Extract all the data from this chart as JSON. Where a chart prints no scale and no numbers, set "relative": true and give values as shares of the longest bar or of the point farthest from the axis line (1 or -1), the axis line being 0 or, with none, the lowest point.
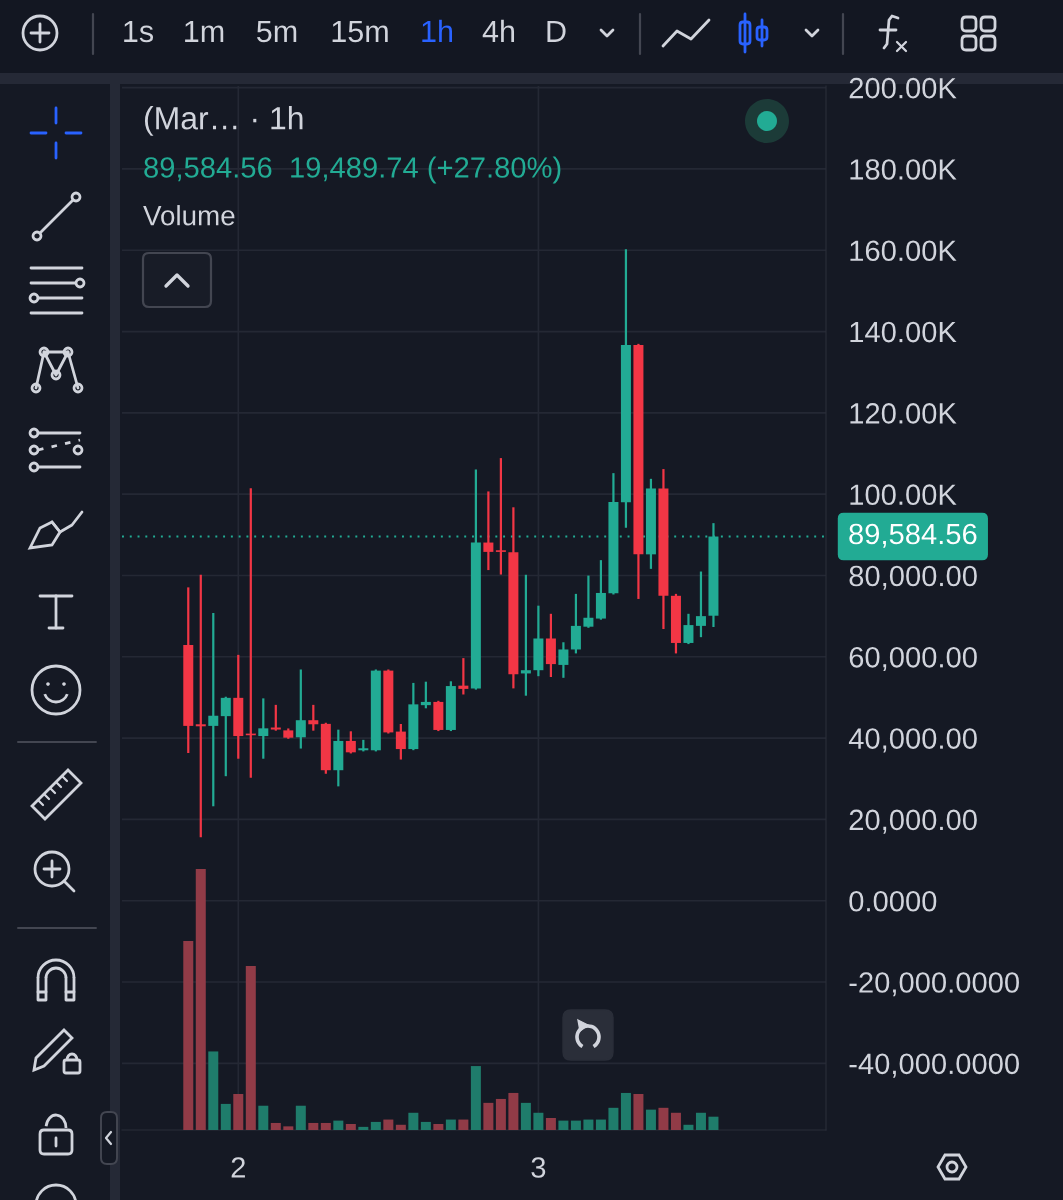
{
  "chart_data": [
    {
      "type": "candlestick",
      "title": "(Mar… · 1h",
      "subtitle": "89,584.56  19,489.74 (+27.80%)",
      "categories": [
        null,
        null,
        null,
        null,
        "2",
        null,
        null,
        null,
        null,
        null,
        null,
        null,
        null,
        null,
        null,
        null,
        null,
        null,
        null,
        null,
        null,
        null,
        null,
        null,
        null,
        null,
        null,
        null,
        "3",
        null,
        null,
        null,
        null,
        null,
        null,
        null,
        null,
        null,
        null,
        null,
        null,
        null,
        null
      ],
      "ohlc": [
        [
          62900,
          76800,
          36600,
          43000
        ],
        [
          43400,
          79900,
          15900,
          42900
        ],
        [
          43000,
          70500,
          23500,
          45500
        ],
        [
          45400,
          49900,
          30900,
          49900
        ],
        [
          49900,
          60200,
          35200,
          40500
        ],
        [
          41100,
          101200,
          30500,
          40700
        ],
        [
          40500,
          49500,
          35200,
          42400
        ],
        [
          42600,
          47900,
          42100,
          42100
        ],
        [
          41900,
          42100,
          40100,
          40100
        ],
        [
          40200,
          56600,
          37700,
          44400
        ],
        [
          44400,
          47900,
          42100,
          43400
        ],
        [
          43500,
          43500,
          31500,
          32100
        ],
        [
          32100,
          41800,
          28400,
          39300
        ],
        [
          39300,
          41400,
          36500,
          36500
        ],
        [
          37000,
          39300,
          37000,
          37500
        ],
        [
          37000,
          56600,
          37000,
          56600
        ],
        [
          56600,
          56600,
          41400,
          41400
        ],
        [
          41600,
          43200,
          35000,
          37300
        ],
        [
          37300,
          53300,
          37300,
          48300
        ],
        [
          48100,
          53600,
          47600,
          48900
        ],
        [
          48900,
          48900,
          42000,
          42000
        ],
        [
          42000,
          53700,
          42000,
          52800
        ],
        [
          52900,
          59400,
          51000,
          52100
        ],
        [
          52200,
          105800,
          52200,
          88100
        ],
        [
          88100,
          100400,
          81600,
          85800
        ],
        [
          86200,
          108600,
          80500,
          85800
        ],
        [
          85700,
          96500,
          52500,
          55700
        ],
        [
          55900,
          79900,
          50700,
          56700
        ],
        [
          56700,
          72300,
          55500,
          64500
        ],
        [
          64500,
          70300,
          55300,
          58200
        ],
        [
          58000,
          63300,
          55100,
          61800
        ],
        [
          61800,
          75200,
          61100,
          67600
        ],
        [
          67400,
          79700,
          67400,
          69600
        ],
        [
          69400,
          83500,
          69400,
          75700
        ],
        [
          75600,
          104900,
          75600,
          98100
        ],
        [
          98000,
          160000,
          92000,
          136700
        ],
        [
          136700,
          136700,
          74500,
          85200
        ],
        [
          85200,
          103500,
          81900,
          101400
        ],
        [
          101400,
          105900,
          67100,
          75000
        ],
        [
          75000,
          75200,
          61100,
          63400
        ],
        [
          63400,
          70300,
          63400,
          67800
        ],
        [
          67600,
          80700,
          65100,
          70000
        ],
        [
          70100,
          92600,
          67600,
          89584.56
        ]
      ],
      "colors": [
        "#f23645",
        "#f23645",
        "#22ab94",
        "#22ab94",
        "#f23645",
        "#f23645",
        "#22ab94",
        "#f23645",
        "#f23645",
        "#22ab94",
        "#f23645",
        "#f23645",
        "#22ab94",
        "#f23645",
        "#22ab94",
        "#22ab94",
        "#f23645",
        "#f23645",
        "#22ab94",
        "#22ab94",
        "#f23645",
        "#22ab94",
        "#f23645",
        "#22ab94",
        "#f23645",
        "#f23645",
        "#f23645",
        "#22ab94",
        "#22ab94",
        "#f23645",
        "#22ab94",
        "#22ab94",
        "#22ab94",
        "#22ab94",
        "#22ab94",
        "#22ab94",
        "#f23645",
        "#22ab94",
        "#f23645",
        "#f23645",
        "#22ab94",
        "#22ab94",
        "#22ab94"
      ],
      "ylim": [
        -56400,
        200400
      ],
      "yticks": [
        {
          "value": 200000,
          "label": "200.00K"
        },
        {
          "value": 180000,
          "label": "180.00K"
        },
        {
          "value": 160000,
          "label": "160.00K"
        },
        {
          "value": 140000,
          "label": "140.00K"
        },
        {
          "value": 120000,
          "label": "120.00K"
        },
        {
          "value": 100000,
          "label": "100.00K"
        },
        {
          "value": 80000,
          "label": "80,000.00"
        },
        {
          "value": 60000,
          "label": "60,000.00"
        },
        {
          "value": 40000,
          "label": "40,000.00"
        },
        {
          "value": 20000,
          "label": "20,000.00"
        },
        {
          "value": 0,
          "label": "0.0000"
        },
        {
          "value": -20000,
          "label": "-20,000.0000"
        },
        {
          "value": -40000,
          "label": "-40,000.0000"
        }
      ],
      "ref_lines": [
        {
          "axis": "y",
          "value": 89584.56,
          "label": "89,584.56",
          "color": "#22ab94",
          "line_style": "dotted"
        }
      ],
      "grid": true,
      "annotations": [
        "1s",
        "1m",
        "5m",
        "15m",
        "1h",
        "4h",
        "D"
      ]
    },
    {
      "type": "bar",
      "title": "Volume",
      "relative": true,
      "tick_labels": false,
      "categories": [
        null,
        null,
        null,
        null,
        "2",
        null,
        null,
        null,
        null,
        null,
        null,
        null,
        null,
        null,
        null,
        null,
        null,
        null,
        null,
        null,
        null,
        null,
        null,
        null,
        null,
        null,
        null,
        null,
        "3",
        null,
        null,
        null,
        null,
        null,
        null,
        null,
        null,
        null,
        null,
        null,
        null,
        null,
        null
      ],
      "values": [
        0.724,
        1,
        0.301,
        0.1,
        0.138,
        0.628,
        0.093,
        0.027,
        0.014,
        0.093,
        0.027,
        0.027,
        0.036,
        0.023,
        0.012,
        0.031,
        0.04,
        0.02,
        0.066,
        0.031,
        0.023,
        0.04,
        0.04,
        0.245,
        0.104,
        0.119,
        0.142,
        0.104,
        0.066,
        0.046,
        0.036,
        0.036,
        0.04,
        0.04,
        0.085,
        0.142,
        0.138,
        0.078,
        0.085,
        0.066,
        0.02,
        0.066,
        0.051
      ],
      "colors": [
        "#913b47",
        "#913b47",
        "#1f7c6b",
        "#1f7c6b",
        "#913b47",
        "#913b47",
        "#1f7c6b",
        "#913b47",
        "#913b47",
        "#1f7c6b",
        "#913b47",
        "#913b47",
        "#1f7c6b",
        "#913b47",
        "#1f7c6b",
        "#1f7c6b",
        "#913b47",
        "#913b47",
        "#1f7c6b",
        "#1f7c6b",
        "#913b47",
        "#1f7c6b",
        "#913b47",
        "#1f7c6b",
        "#913b47",
        "#913b47",
        "#913b47",
        "#1f7c6b",
        "#1f7c6b",
        "#913b47",
        "#1f7c6b",
        "#1f7c6b",
        "#1f7c6b",
        "#1f7c6b",
        "#1f7c6b",
        "#1f7c6b",
        "#913b47",
        "#1f7c6b",
        "#913b47",
        "#913b47",
        "#1f7c6b",
        "#1f7c6b",
        "#1f7c6b"
      ]
    }
  ]
}
